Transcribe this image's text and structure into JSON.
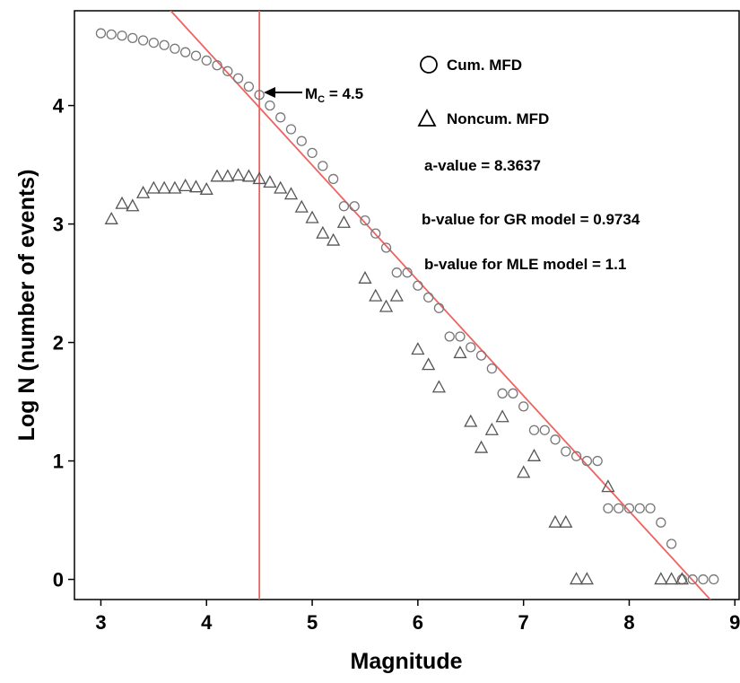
{
  "chart_data": {
    "type": "scatter",
    "x_label": "Magnitude",
    "y_label": "Log N (number of events)",
    "xlim": [
      2.75,
      9.04
    ],
    "ylim": [
      -0.17,
      4.8
    ],
    "xticks": [
      3,
      4,
      5,
      6,
      7,
      8,
      9
    ],
    "yticks": [
      0,
      1,
      2,
      3,
      4
    ],
    "series": [
      {
        "name": "Cum. MFD",
        "marker": "circle",
        "color": "#777777",
        "x": [
          3,
          3.1,
          3.2,
          3.3,
          3.4,
          3.5,
          3.6,
          3.7,
          3.8,
          3.9,
          4,
          4.1,
          4.2,
          4.3,
          4.4,
          4.5,
          4.6,
          4.7,
          4.8,
          4.9,
          5,
          5.1,
          5.2,
          5.3,
          5.4,
          5.5,
          5.6,
          5.7,
          5.8,
          5.9,
          6,
          6.1,
          6.2,
          6.3,
          6.4,
          6.5,
          6.6,
          6.7,
          6.8,
          6.9,
          7,
          7.1,
          7.2,
          7.3,
          7.4,
          7.5,
          7.6,
          7.7,
          7.8,
          7.9,
          8,
          8.1,
          8.2,
          8.3,
          8.4,
          8.5,
          8.6,
          8.7,
          8.8
        ],
        "values": [
          4.61,
          4.6,
          4.59,
          4.57,
          4.55,
          4.53,
          4.51,
          4.48,
          4.45,
          4.42,
          4.38,
          4.34,
          4.29,
          4.23,
          4.16,
          4.09,
          4,
          3.9,
          3.8,
          3.7,
          3.6,
          3.49,
          3.38,
          3.15,
          3.15,
          3.03,
          2.92,
          2.8,
          2.59,
          2.59,
          2.48,
          2.38,
          2.29,
          2.05,
          2.05,
          1.96,
          1.89,
          1.78,
          1.57,
          1.57,
          1.46,
          1.26,
          1.26,
          1.18,
          1.08,
          1.04,
          1,
          1,
          0.6,
          0.6,
          0.6,
          0.6,
          0.6,
          0.48,
          0.3,
          0,
          0,
          0,
          0
        ]
      },
      {
        "name": "Noncum. MFD",
        "marker": "triangle",
        "color": "#555555",
        "x": [
          3.1,
          3.2,
          3.3,
          3.4,
          3.5,
          3.6,
          3.7,
          3.8,
          3.9,
          4,
          4.1,
          4.2,
          4.3,
          4.4,
          4.5,
          4.6,
          4.7,
          4.8,
          4.9,
          5,
          5.1,
          5.2,
          5.3,
          5.5,
          5.6,
          5.7,
          5.8,
          6,
          6.1,
          6.2,
          6.4,
          6.5,
          6.6,
          6.7,
          6.8,
          7,
          7.1,
          7.3,
          7.4,
          7.5,
          7.6,
          7.8,
          8.3,
          8.4,
          8.5
        ],
        "values": [
          3.04,
          3.17,
          3.15,
          3.26,
          3.3,
          3.3,
          3.3,
          3.32,
          3.31,
          3.29,
          3.4,
          3.4,
          3.41,
          3.4,
          3.38,
          3.35,
          3.3,
          3.25,
          3.14,
          3.05,
          2.92,
          2.86,
          3.01,
          2.54,
          2.39,
          2.3,
          2.39,
          1.94,
          1.81,
          1.62,
          1.91,
          1.33,
          1.11,
          1.26,
          1.37,
          0.9,
          1.04,
          0.48,
          0.48,
          0,
          0,
          0.78,
          0,
          0,
          0
        ]
      }
    ],
    "mc_line": {
      "x": 4.5,
      "color": "#f0625f"
    },
    "fit_line": {
      "a": 8.3637,
      "b": 0.9734,
      "color": "#f0625f"
    },
    "mc_label": {
      "main": "M",
      "sub": "C",
      "rest": " = 4.5"
    },
    "annotations": [
      "a-value = 8.3637",
      "b-value for GR model = 0.9734",
      "b-value for MLE model = 1.1"
    ]
  }
}
